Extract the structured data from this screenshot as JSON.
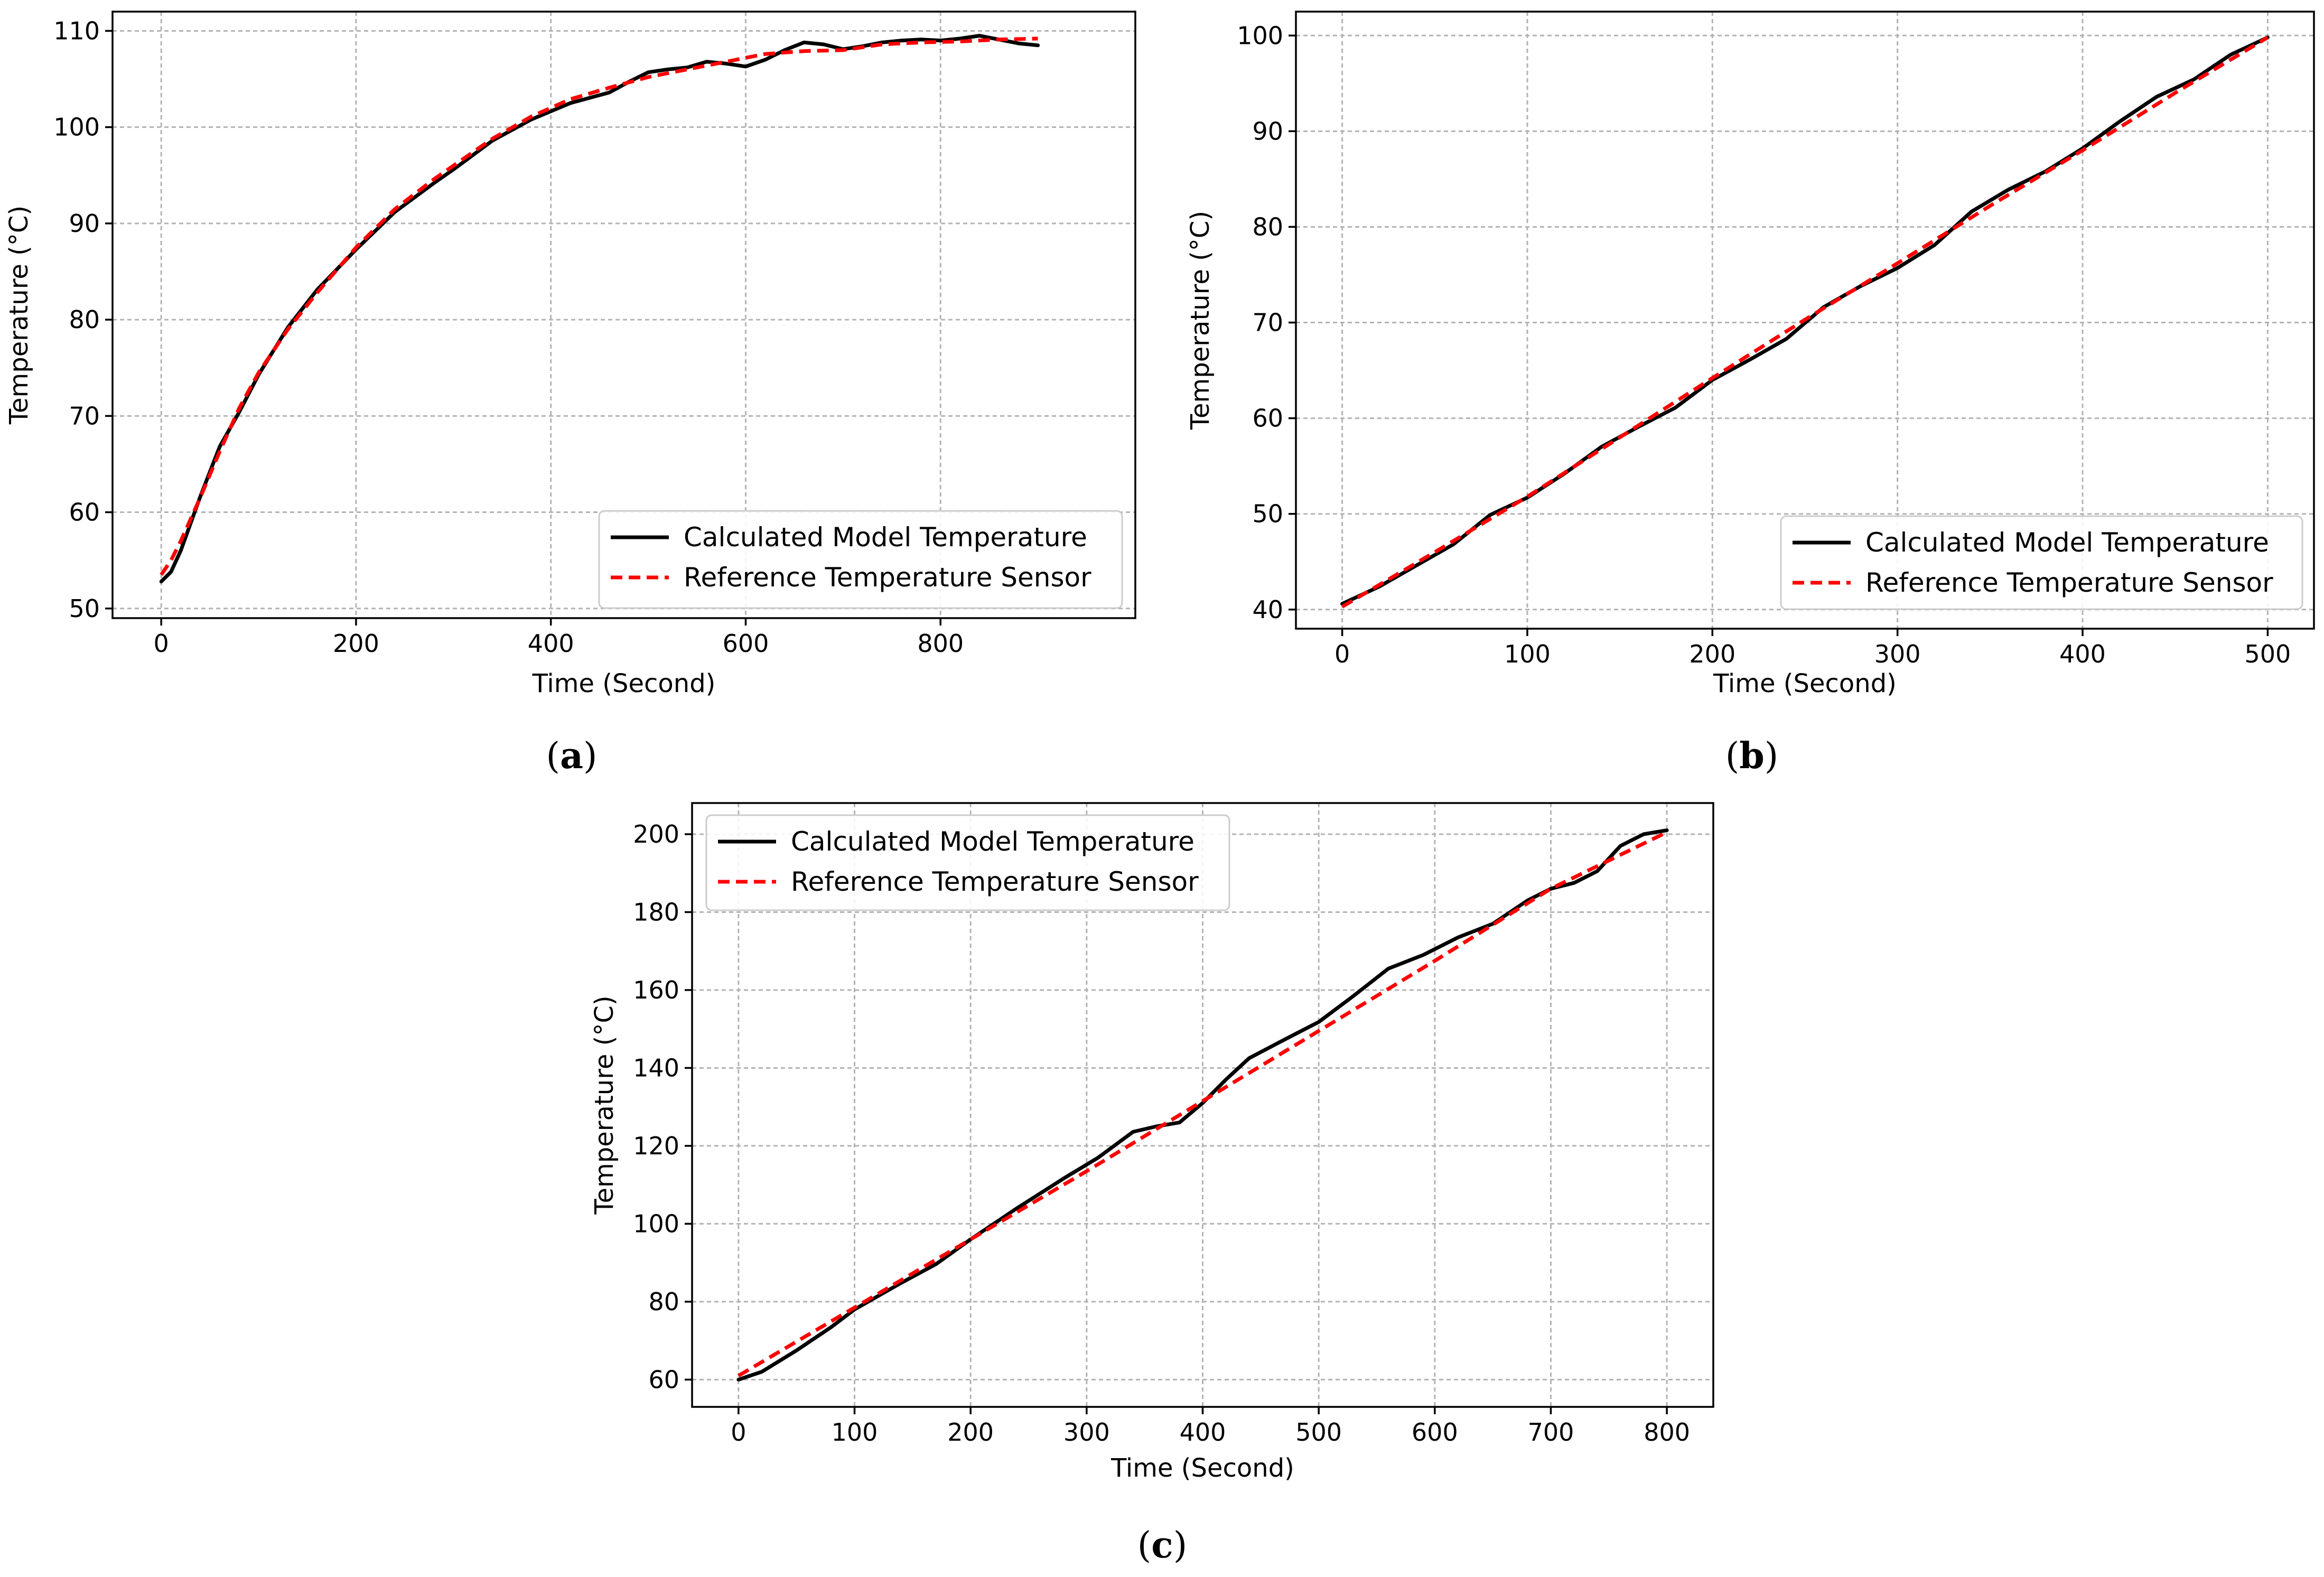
{
  "chart_data": [
    {
      "type": "line",
      "panel_label": "a",
      "xlabel": "Time (Second)",
      "ylabel": "Temperature (°C)",
      "xlim": [
        -50,
        1000
      ],
      "ylim": [
        49,
        112
      ],
      "xticks": [
        0,
        200,
        400,
        600,
        800
      ],
      "yticks": [
        50,
        60,
        70,
        80,
        90,
        100,
        110
      ],
      "grid": true,
      "legend_position": "lower-right",
      "series": [
        {
          "name": "Calculated Model Temperature",
          "color": "#000000",
          "style": "solid",
          "x": [
            0,
            10,
            20,
            40,
            60,
            80,
            100,
            130,
            160,
            200,
            240,
            280,
            300,
            340,
            380,
            420,
            460,
            480,
            500,
            520,
            540,
            560,
            580,
            600,
            620,
            640,
            660,
            680,
            700,
            720,
            740,
            760,
            780,
            800,
            820,
            840,
            860,
            880,
            900
          ],
          "y": [
            52.8,
            53.8,
            56.0,
            61.6,
            66.8,
            70.4,
            74.3,
            79.2,
            83.1,
            87.3,
            91.2,
            94.2,
            95.6,
            98.6,
            100.8,
            102.5,
            103.6,
            104.7,
            105.7,
            106.0,
            106.2,
            106.8,
            106.6,
            106.3,
            107.0,
            108.0,
            108.8,
            108.6,
            108.1,
            108.4,
            108.8,
            109.0,
            109.1,
            109.0,
            109.2,
            109.5,
            109.1,
            108.7,
            108.5
          ]
        },
        {
          "name": "Reference Temperature Sensor",
          "color": "#ff0000",
          "style": "dashed",
          "x": [
            0,
            10,
            20,
            40,
            60,
            80,
            100,
            130,
            160,
            200,
            240,
            280,
            300,
            340,
            380,
            420,
            460,
            500,
            540,
            580,
            620,
            660,
            700,
            740,
            780,
            820,
            860,
            900
          ],
          "y": [
            53.5,
            55.0,
            57.0,
            61.5,
            66.3,
            70.8,
            74.5,
            79.0,
            82.8,
            87.5,
            91.5,
            94.6,
            96.0,
            98.8,
            101.1,
            102.9,
            104.1,
            105.2,
            106.0,
            106.8,
            107.6,
            107.9,
            108.0,
            108.6,
            108.8,
            108.9,
            109.1,
            109.2
          ]
        }
      ]
    },
    {
      "type": "line",
      "panel_label": "b",
      "xlabel": "Time (Second)",
      "ylabel": "Temperature (°C)",
      "xlim": [
        -25,
        525
      ],
      "ylim": [
        38,
        102.5
      ],
      "xticks": [
        0,
        100,
        200,
        300,
        400,
        500
      ],
      "yticks": [
        40,
        50,
        60,
        70,
        80,
        90,
        100
      ],
      "grid": true,
      "legend_position": "lower-right",
      "series": [
        {
          "name": "Calculated Model Temperature",
          "color": "#000000",
          "style": "solid",
          "x": [
            0,
            20,
            40,
            60,
            80,
            100,
            120,
            140,
            160,
            180,
            200,
            220,
            240,
            260,
            280,
            300,
            320,
            340,
            360,
            380,
            400,
            420,
            440,
            460,
            480,
            500
          ],
          "y": [
            40.6,
            42.4,
            44.6,
            46.8,
            49.9,
            51.7,
            54.2,
            57.0,
            59.1,
            61.1,
            64.0,
            66.1,
            68.3,
            71.6,
            73.8,
            75.7,
            78.1,
            81.6,
            83.9,
            85.8,
            88.2,
            91.0,
            93.6,
            95.4,
            98.0,
            99.8
          ]
        },
        {
          "name": "Reference Temperature Sensor",
          "color": "#ff0000",
          "style": "dashed",
          "x": [
            0,
            50,
            100,
            150,
            200,
            250,
            300,
            350,
            400,
            450,
            500
          ],
          "y": [
            40.3,
            46.0,
            51.8,
            58.0,
            64.2,
            70.3,
            76.2,
            82.2,
            88.0,
            94.0,
            99.8
          ]
        }
      ]
    },
    {
      "type": "line",
      "panel_label": "c",
      "xlabel": "Time (Second)",
      "ylabel": "Temperature (°C)",
      "xlim": [
        -40,
        840
      ],
      "ylim": [
        53,
        208
      ],
      "xticks": [
        0,
        100,
        200,
        300,
        400,
        500,
        600,
        700,
        800
      ],
      "yticks": [
        60,
        80,
        100,
        120,
        140,
        160,
        180,
        200
      ],
      "grid": true,
      "legend_position": "upper-left",
      "series": [
        {
          "name": "Calculated Model Temperature",
          "color": "#000000",
          "style": "solid",
          "x": [
            0,
            20,
            50,
            80,
            100,
            140,
            170,
            200,
            240,
            280,
            310,
            340,
            360,
            380,
            400,
            420,
            440,
            470,
            500,
            530,
            560,
            590,
            620,
            650,
            680,
            700,
            720,
            740,
            760,
            780,
            800
          ],
          "y": [
            60.0,
            62.0,
            67.5,
            73.5,
            78.0,
            84.8,
            89.6,
            96.0,
            104.0,
            111.6,
            117.0,
            123.6,
            125.0,
            126.0,
            131.0,
            137.0,
            142.5,
            147.2,
            151.8,
            158.5,
            165.5,
            169.0,
            173.5,
            177.0,
            183.0,
            186.0,
            187.5,
            190.5,
            197.0,
            200.0,
            201.0
          ]
        },
        {
          "name": "Reference Temperature Sensor",
          "color": "#ff0000",
          "style": "dashed",
          "x": [
            0,
            100,
            200,
            300,
            400,
            500,
            600,
            700,
            800
          ],
          "y": [
            61.0,
            78.5,
            96.0,
            113.5,
            131.5,
            149.5,
            167.5,
            186.0,
            200.5
          ]
        }
      ]
    }
  ]
}
